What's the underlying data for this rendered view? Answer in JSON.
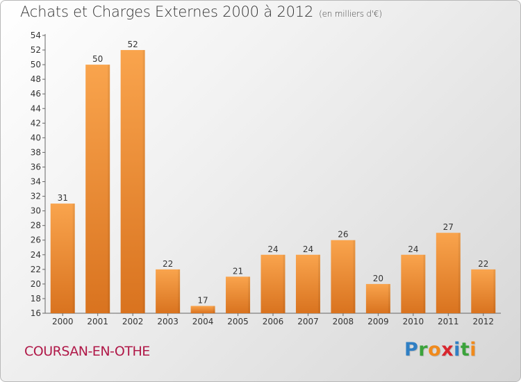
{
  "header": {
    "title": "Achats et Charges Externes 2000 à 2012",
    "unit": "(en milliers d'€)"
  },
  "footer": {
    "city": "COURSAN-EN-OTHE",
    "logo_letters": [
      {
        "char": "P",
        "color": "#2f7fc4"
      },
      {
        "char": "r",
        "color": "#3ba33b"
      },
      {
        "char": "o",
        "color": "#f08a1c"
      },
      {
        "char": "x",
        "color": "#d8262e"
      },
      {
        "char": "i",
        "color": "#2f7fc4"
      },
      {
        "char": "t",
        "color": "#3ba33b"
      },
      {
        "char": "i",
        "color": "#f08a1c"
      }
    ]
  },
  "colors": {
    "bar_light": "#f9a44d",
    "bar_dark": "#d9731f",
    "city": "#b01848"
  },
  "chart_data": {
    "type": "bar",
    "title": "Achats et Charges Externes 2000 à 2012",
    "subtitle": "(en milliers d'€)",
    "categories": [
      "2000",
      "2001",
      "2002",
      "2003",
      "2004",
      "2005",
      "2006",
      "2007",
      "2008",
      "2009",
      "2010",
      "2011",
      "2012"
    ],
    "values": [
      31,
      50,
      52,
      22,
      17,
      21,
      24,
      24,
      26,
      20,
      24,
      27,
      22
    ],
    "ylim": [
      16,
      54
    ],
    "yticks": [
      16,
      18,
      20,
      22,
      24,
      26,
      28,
      30,
      32,
      34,
      36,
      38,
      40,
      42,
      44,
      46,
      48,
      50,
      52,
      54
    ],
    "grid": false,
    "data_labels": true
  }
}
